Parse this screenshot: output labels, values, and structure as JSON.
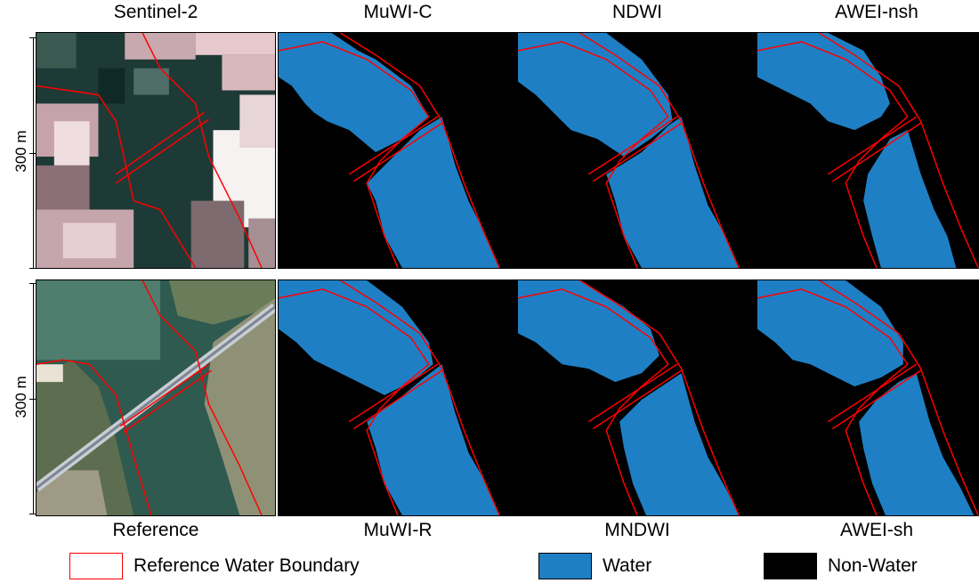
{
  "titles_top": [
    "Sentinel-2",
    "MuWI-C",
    "NDWI",
    "AWEI-nsh"
  ],
  "titles_bottom": [
    "Reference",
    "MuWI-R",
    "MNDWI",
    "AWEI-sh"
  ],
  "scale": {
    "top": "300 m",
    "bottom": "300 m"
  },
  "legend": {
    "boundary": "Reference Water Boundary",
    "water": "Water",
    "nonwater": "Non-Water"
  },
  "colors": {
    "water": "#1f7fc4",
    "nonwater": "#000000",
    "boundary": "#ff0000"
  }
}
